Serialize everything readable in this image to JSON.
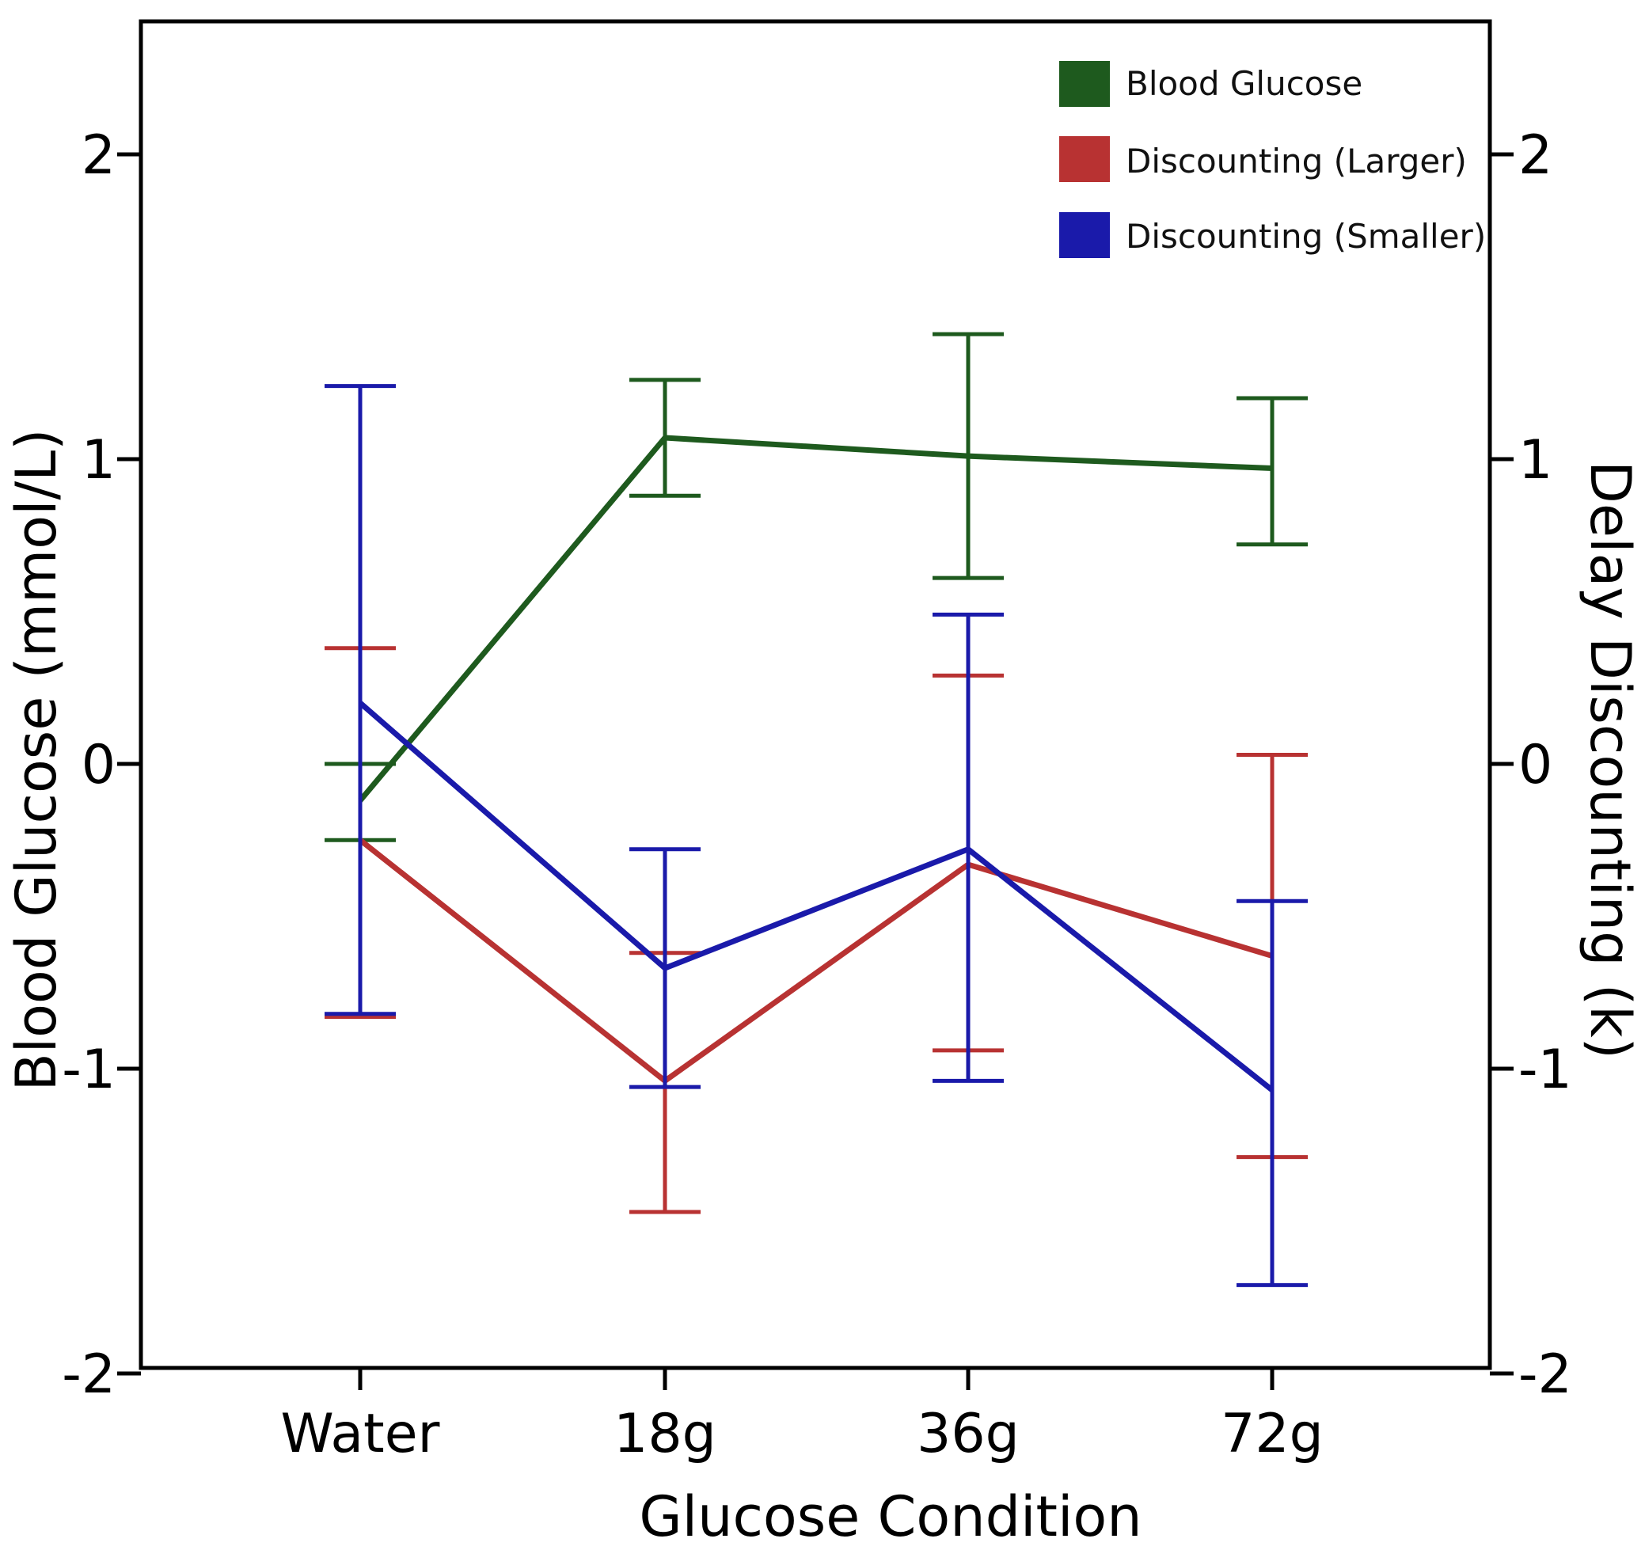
{
  "chart_data": {
    "type": "line",
    "title": "",
    "xlabel": "Glucose Condition",
    "ylabel_left": "Blood Glucose (mmol/L)",
    "ylabel_right": "Delay Discounting (k)",
    "categories": [
      "Water",
      "18g",
      "36g",
      "72g"
    ],
    "ylim": [
      -2,
      2.4
    ],
    "yticks": [
      -2,
      -1,
      0,
      1,
      2
    ],
    "ytick_labels": [
      "-2",
      "-1",
      "0",
      "1",
      "2"
    ],
    "grid": false,
    "legend_position": "top-right",
    "series": [
      {
        "name": "Blood Glucose",
        "color": "#1e5a1e",
        "values": [
          -0.12,
          1.07,
          1.01,
          0.97
        ],
        "err_low": [
          -0.25,
          0.88,
          0.61,
          0.72
        ],
        "err_high": [
          0.0,
          1.26,
          1.41,
          1.2
        ]
      },
      {
        "name": "Discounting (Larger)",
        "color": "#b83232",
        "values": [
          -0.25,
          -1.04,
          -0.33,
          -0.63
        ],
        "err_low": [
          -0.83,
          -1.47,
          -0.94,
          -1.29
        ],
        "err_high": [
          0.38,
          -0.62,
          0.29,
          0.03
        ]
      },
      {
        "name": "Discounting (Smaller)",
        "color": "#1a1aaa",
        "values": [
          0.2,
          -0.67,
          -0.28,
          -1.07
        ],
        "err_low": [
          -0.82,
          -1.06,
          -1.04,
          -1.71
        ],
        "err_high": [
          1.24,
          -0.28,
          0.49,
          -0.45
        ]
      }
    ]
  }
}
